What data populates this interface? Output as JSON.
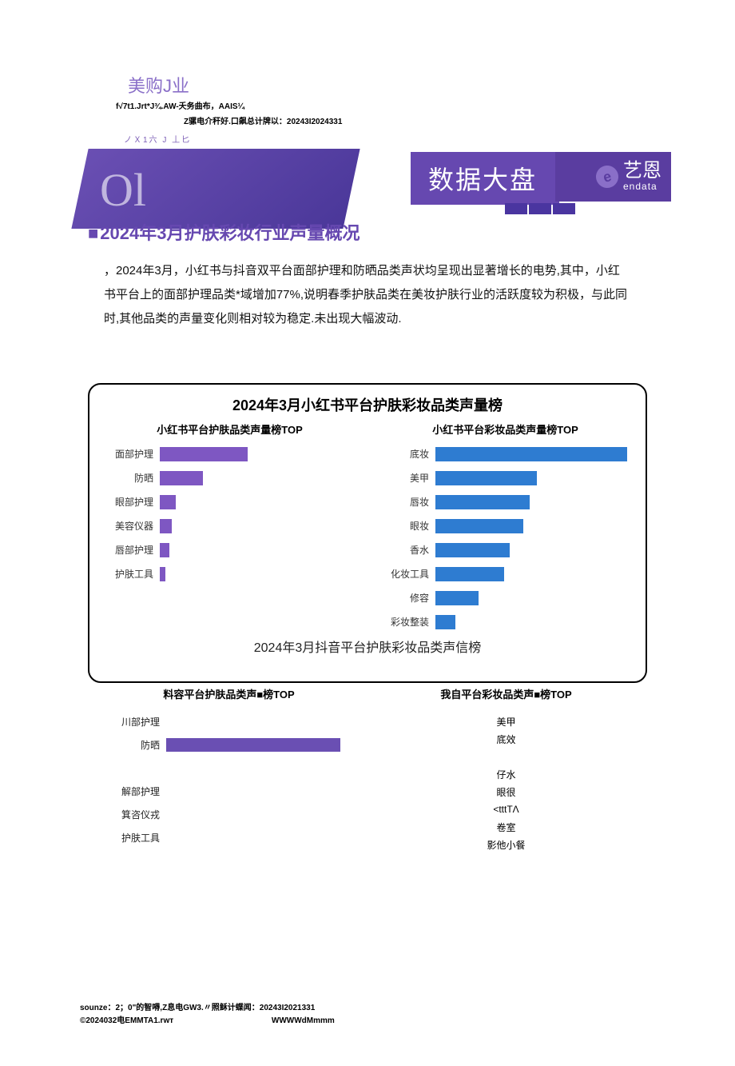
{
  "header": {
    "top_title": "美购J业",
    "sub": "f√7t1.Jrt*J¾.AW-夭务曲布，AAIS¼",
    "line2": "Z骡电介秆好.口飙总计牌以：20243I2024331",
    "overlay_txt": "ノＸ1六 J 丄匕",
    "ol": "Ol"
  },
  "banner": {
    "title": "数据大盘",
    "logo_cn": "艺恩",
    "logo_en": "endata"
  },
  "section_title": "2024年3月护肤彩妆行业声量概况",
  "body": "，2024年3月，小红书与抖音双平台面部护理和防晒品类声状均呈现出显著增长的电势,其中，小红书平台上的面部护理品类*域增加77%,说明春季护肤品类在美妆护肤行业的活跃度较为积极，与此同时,其他品类的声量变化则相对较为稳定.未出现大幅波动.",
  "chart1": {
    "title": "2024年3月小红书平台护肤彩妆品类声量榜",
    "left": {
      "title": "小红书平台护肤品类声量榜TOP",
      "color": "#7e57c2",
      "max": 100,
      "rows": [
        {
          "label": "面部护理",
          "val": 45
        },
        {
          "label": "防晒",
          "val": 22
        },
        {
          "label": "眼部护理",
          "val": 8
        },
        {
          "label": "美容仪器",
          "val": 6
        },
        {
          "label": "唇部护理",
          "val": 5
        },
        {
          "label": "护肤工具",
          "val": 3
        }
      ]
    },
    "right": {
      "title": "小红书平台彩妆品类声量榜TOP",
      "color": "#2e7cd1",
      "max": 100,
      "rows": [
        {
          "label": "底妆",
          "val": 98
        },
        {
          "label": "美甲",
          "val": 52
        },
        {
          "label": "唇妆",
          "val": 48
        },
        {
          "label": "眼妆",
          "val": 45
        },
        {
          "label": "香水",
          "val": 38
        },
        {
          "label": "化妆工具",
          "val": 35
        },
        {
          "label": "修容",
          "val": 22
        },
        {
          "label": "彩妆整装",
          "val": 10
        }
      ]
    }
  },
  "chart2": {
    "title": "2024年3月抖音平台护肤彩妆品类声信榜",
    "left": {
      "title": "料容平台护肤品类声■榜TOP",
      "rows": [
        {
          "label": "川部护理",
          "val": 0
        },
        {
          "label": "防晒",
          "val": 92
        },
        {
          "label": "",
          "val": 0
        },
        {
          "label": "解部护理",
          "val": 0
        },
        {
          "label": "箕咨仪戎",
          "val": 0
        },
        {
          "label": "护肤工具",
          "val": 0
        }
      ]
    },
    "right": {
      "title": "我自平台彩妆品类声■榜TOP",
      "labels": [
        "美甲",
        "底效",
        "",
        "仔水",
        "眼很",
        "<tttTΛ",
        "卷室",
        "影他小餐"
      ]
    }
  },
  "footer": {
    "line1": "sounze：2；0\"的智嘚,Z息电GW3.〃照稣计蝶闻：20243I2021331",
    "line2a": "©2024032电EMMTA1.rwт",
    "line2b": "WWWWdMmmm"
  }
}
